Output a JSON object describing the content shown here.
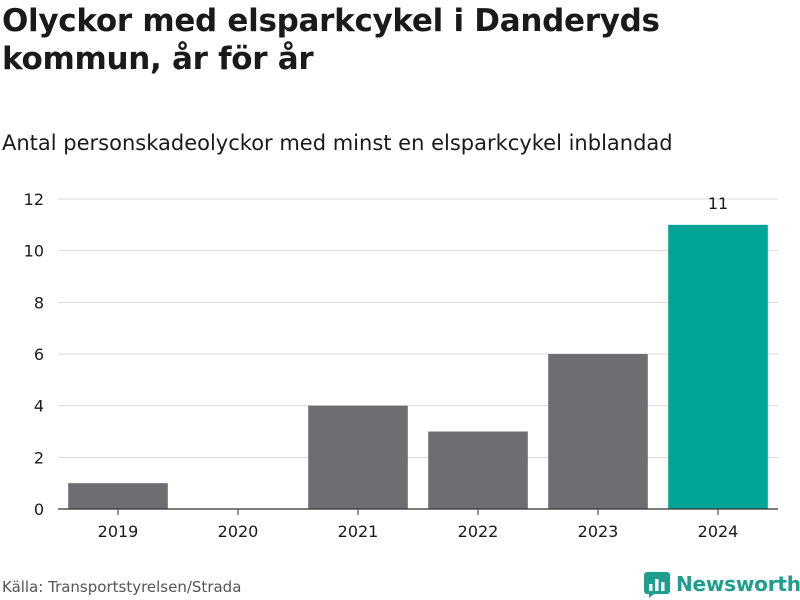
{
  "header": {
    "title": "Olyckor med elsparkcykel i Danderyds kommun, år för år",
    "subtitle": "Antal personskadeolyckor med minst en elsparkcykel inblandad"
  },
  "footer": {
    "source": "Källa: Transportstyrelsen/Strada",
    "brand": "Newsworthy"
  },
  "colors": {
    "default_bar": "#6e6d72",
    "highlight_bar": "#00a598",
    "grid": "#d9d9d9",
    "axis": "#333333",
    "brand": "#1f9e8e"
  },
  "chart_data": {
    "type": "bar",
    "title": "Olyckor med elsparkcykel i Danderyds kommun, år för år",
    "subtitle": "Antal personskadeolyckor med minst en elsparkcykel inblandad",
    "categories": [
      "2019",
      "2020",
      "2021",
      "2022",
      "2023",
      "2024"
    ],
    "values": [
      1,
      0,
      4,
      3,
      6,
      11
    ],
    "highlight_index": 5,
    "data_labels": [
      null,
      null,
      null,
      null,
      null,
      "11"
    ],
    "ylim": [
      0,
      12
    ],
    "yticks": [
      0,
      2,
      4,
      6,
      8,
      10,
      12
    ],
    "grid": true,
    "xlabel": "",
    "ylabel": ""
  }
}
